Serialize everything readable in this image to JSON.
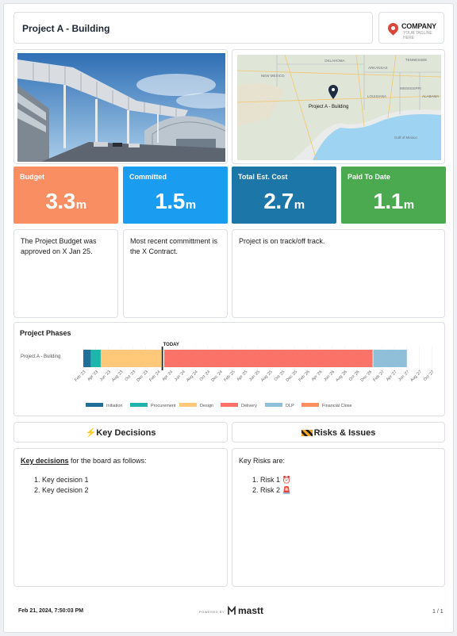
{
  "header": {
    "title": "Project A - Building",
    "logo_name": "COMPANY",
    "logo_tagline": "YOUR TAGLINE HERE"
  },
  "map": {
    "pin_label": "Project A - Building",
    "place_labels": [
      "OKLAHOMA",
      "ARKANSAS",
      "TENNESSEE",
      "NEW MEXICO",
      "MISSISSIPPI",
      "LOUISIANA",
      "ALABAMA",
      "Gulf of Mexico"
    ]
  },
  "kpis": [
    {
      "label": "Budget",
      "value": "3.3",
      "unit": "m",
      "color": "#f98e62"
    },
    {
      "label": "Committed",
      "value": "1.5",
      "unit": "m",
      "color": "#1a9cf0"
    },
    {
      "label": "Total Est. Cost",
      "value": "2.7",
      "unit": "m",
      "color": "#1c76a7"
    },
    {
      "label": "Paid To Date",
      "value": "1.1",
      "unit": "m",
      "color": "#4ba950"
    }
  ],
  "notes": {
    "budget": "The Project Budget was approved on X Jan 25.",
    "committed": "Most recent committment is the X Contract.",
    "status": "Project is on track/off track."
  },
  "phases": {
    "title": "Project Phases",
    "row_label": "Project A - Building",
    "today_label": "TODAY",
    "ticks": [
      "Feb '23",
      "Apr '23",
      "Jun '23",
      "Aug '23",
      "Oct '23",
      "Dec '23",
      "Feb '24",
      "Apr '24",
      "Jun '24",
      "Aug '24",
      "Oct '24",
      "Dec '24",
      "Feb '25",
      "Apr '25",
      "Jun '25",
      "Aug '25",
      "Oct '25",
      "Dec '25",
      "Feb '26",
      "Apr '26",
      "Jun '26",
      "Aug '26",
      "Oct '26",
      "Dec '26",
      "Feb '27",
      "Apr '27",
      "Jun '27",
      "Aug '27",
      "Oct '27"
    ],
    "segments": [
      {
        "name": "Initiation",
        "color": "#1f6f96",
        "start_month": 0,
        "end_month": 1.2
      },
      {
        "name": "Procurement",
        "color": "#1fb5ae",
        "start_month": 1.2,
        "end_month": 2.8
      },
      {
        "name": "Design",
        "color": "#ffc979",
        "start_month": 2.8,
        "end_month": 12.5
      },
      {
        "name": "Delivery",
        "color": "#fb7268",
        "start_month": 13.0,
        "end_month": 46.5
      },
      {
        "name": "DLP",
        "color": "#8fbfd9",
        "start_month": 46.6,
        "end_month": 52.0
      },
      {
        "name": "Financial Close",
        "color": "#fb8f60",
        "start_month": null,
        "end_month": null
      }
    ],
    "today_month": 12.7,
    "total_months": 57
  },
  "key_decisions": {
    "title": "Key Decisions",
    "icon": "lightning-icon",
    "intro_bold": "Key decisions",
    "intro_rest": " for the board as follows:",
    "items": [
      "Key decision 1",
      "Key decision 2"
    ]
  },
  "risks": {
    "title": "Risks & Issues",
    "icon": "construction-barrier-icon",
    "intro": "Key Risks are:",
    "items": [
      {
        "text": "Risk 1",
        "icon": "alarm-clock-icon"
      },
      {
        "text": "Risk 2",
        "icon": "siren-light-icon"
      }
    ]
  },
  "footer": {
    "date": "Feb 21, 2024, 7:50:03 PM",
    "powered_by": "POWERED BY",
    "brand": "mastt",
    "page": "1 / 1"
  }
}
